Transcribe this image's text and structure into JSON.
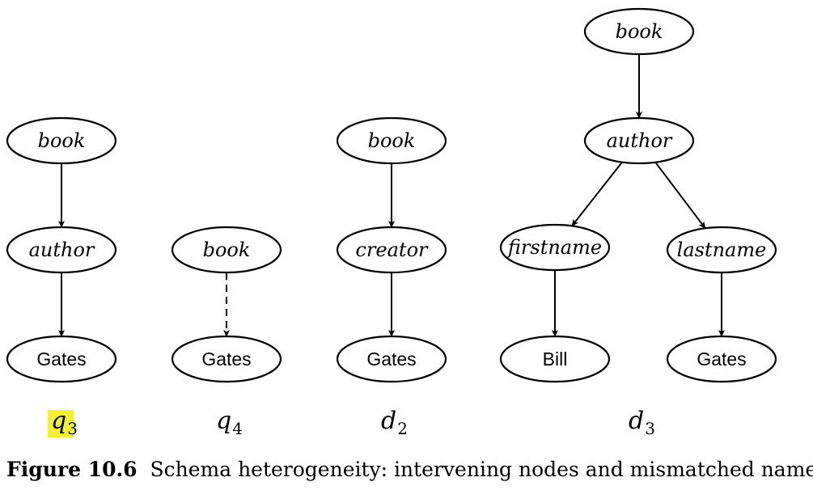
{
  "figure": {
    "number": "Figure 10.6",
    "caption": "Schema heterogeneity: intervening nodes and mismatched names."
  },
  "trees": [
    {
      "id": "q3",
      "label_main": "q",
      "label_index": "3",
      "highlighted": true,
      "nodes": [
        {
          "id": "q3-book",
          "text": "book",
          "style": "element"
        },
        {
          "id": "q3-author",
          "text": "author",
          "style": "element"
        },
        {
          "id": "q3-gates",
          "text": "Gates",
          "style": "value"
        }
      ],
      "edges": [
        {
          "from": "q3-book",
          "to": "q3-author",
          "type": "child"
        },
        {
          "from": "q3-author",
          "to": "q3-gates",
          "type": "child"
        }
      ]
    },
    {
      "id": "q4",
      "label_main": "q",
      "label_index": "4",
      "highlighted": false,
      "nodes": [
        {
          "id": "q4-book",
          "text": "book",
          "style": "element"
        },
        {
          "id": "q4-gates",
          "text": "Gates",
          "style": "value"
        }
      ],
      "edges": [
        {
          "from": "q4-book",
          "to": "q4-gates",
          "type": "descendant"
        }
      ]
    },
    {
      "id": "d2",
      "label_main": "d",
      "label_index": "2",
      "highlighted": false,
      "nodes": [
        {
          "id": "d2-book",
          "text": "book",
          "style": "element"
        },
        {
          "id": "d2-creator",
          "text": "creator",
          "style": "element"
        },
        {
          "id": "d2-gates",
          "text": "Gates",
          "style": "value"
        }
      ],
      "edges": [
        {
          "from": "d2-book",
          "to": "d2-creator",
          "type": "child"
        },
        {
          "from": "d2-creator",
          "to": "d2-gates",
          "type": "child"
        }
      ]
    },
    {
      "id": "d3",
      "label_main": "d",
      "label_index": "3",
      "highlighted": false,
      "nodes": [
        {
          "id": "d3-book",
          "text": "book",
          "style": "element"
        },
        {
          "id": "d3-author",
          "text": "author",
          "style": "element"
        },
        {
          "id": "d3-firstname",
          "text": "firstname",
          "style": "element"
        },
        {
          "id": "d3-lastname",
          "text": "lastname",
          "style": "element"
        },
        {
          "id": "d3-bill",
          "text": "Bill",
          "style": "value"
        },
        {
          "id": "d3-gates",
          "text": "Gates",
          "style": "value"
        }
      ],
      "edges": [
        {
          "from": "d3-book",
          "to": "d3-author",
          "type": "child"
        },
        {
          "from": "d3-author",
          "to": "d3-firstname",
          "type": "child"
        },
        {
          "from": "d3-author",
          "to": "d3-lastname",
          "type": "child"
        },
        {
          "from": "d3-firstname",
          "to": "d3-bill",
          "type": "child"
        },
        {
          "from": "d3-lastname",
          "to": "d3-gates",
          "type": "child"
        }
      ]
    }
  ]
}
